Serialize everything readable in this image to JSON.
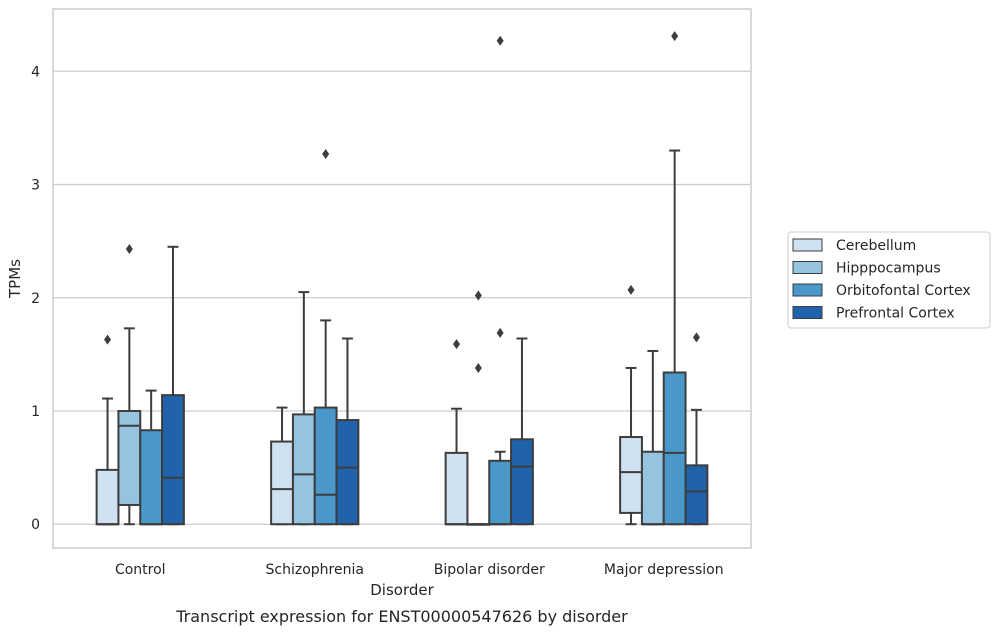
{
  "chart_data": {
    "type": "box",
    "title": "",
    "caption": "Transcript expression for ENST00000547626 by disorder",
    "xlabel": "Disorder",
    "ylabel": "TPMs",
    "ylim": [
      -0.21,
      4.55
    ],
    "yticks": [
      0,
      1,
      2,
      3,
      4
    ],
    "grid": true,
    "legend_position": "right",
    "categories": [
      "Control",
      "Schizophrenia",
      "Bipolar disorder",
      "Major depression"
    ],
    "series": [
      {
        "name": "Cerebellum",
        "color": "#d0e1f2",
        "boxes": [
          {
            "whisker_low": 0,
            "q1": 0,
            "median": 0,
            "q3": 0.48,
            "whisker_high": 1.11,
            "outliers": [
              1.63
            ]
          },
          {
            "whisker_low": 0,
            "q1": 0,
            "median": 0.31,
            "q3": 0.73,
            "whisker_high": 1.03,
            "outliers": []
          },
          {
            "whisker_low": 0,
            "q1": 0,
            "median": 0,
            "q3": 0.63,
            "whisker_high": 1.02,
            "outliers": [
              1.59
            ]
          },
          {
            "whisker_low": 0,
            "q1": 0.1,
            "median": 0.46,
            "q3": 0.77,
            "whisker_high": 1.38,
            "outliers": [
              2.07
            ]
          }
        ]
      },
      {
        "name": "Hipppocampus",
        "color": "#94c4df",
        "boxes": [
          {
            "whisker_low": 0,
            "q1": 0.17,
            "median": 0.87,
            "q3": 1.0,
            "whisker_high": 1.73,
            "outliers": [
              2.43
            ]
          },
          {
            "whisker_low": 0,
            "q1": 0,
            "median": 0.44,
            "q3": 0.97,
            "whisker_high": 2.05,
            "outliers": []
          },
          {
            "whisker_low": 0,
            "q1": 0,
            "median": 0,
            "q3": 0,
            "whisker_high": 0,
            "outliers": [
              1.38,
              2.02
            ]
          },
          {
            "whisker_low": 0,
            "q1": 0,
            "median": 0,
            "q3": 0.64,
            "whisker_high": 1.53,
            "outliers": []
          }
        ]
      },
      {
        "name": "Orbitofontal Cortex",
        "color": "#4a98c9",
        "boxes": [
          {
            "whisker_low": 0,
            "q1": 0,
            "median": 0,
            "q3": 0.83,
            "whisker_high": 1.18,
            "outliers": []
          },
          {
            "whisker_low": 0,
            "q1": 0,
            "median": 0.26,
            "q3": 1.03,
            "whisker_high": 1.8,
            "outliers": [
              3.27
            ]
          },
          {
            "whisker_low": 0,
            "q1": 0,
            "median": 0,
            "q3": 0.56,
            "whisker_high": 0.64,
            "outliers": [
              1.69,
              4.27
            ]
          },
          {
            "whisker_low": 0,
            "q1": 0,
            "median": 0.63,
            "q3": 1.34,
            "whisker_high": 3.3,
            "outliers": [
              4.31
            ]
          }
        ]
      },
      {
        "name": "Prefrontal Cortex",
        "color": "#2163aa",
        "boxes": [
          {
            "whisker_low": 0,
            "q1": 0,
            "median": 0.41,
            "q3": 1.14,
            "whisker_high": 2.45,
            "outliers": []
          },
          {
            "whisker_low": 0,
            "q1": 0,
            "median": 0.5,
            "q3": 0.92,
            "whisker_high": 1.64,
            "outliers": []
          },
          {
            "whisker_low": 0,
            "q1": 0,
            "median": 0.51,
            "q3": 0.75,
            "whisker_high": 1.64,
            "outliers": []
          },
          {
            "whisker_low": 0,
            "q1": 0,
            "median": 0.29,
            "q3": 0.52,
            "whisker_high": 1.01,
            "outliers": [
              1.65
            ]
          }
        ]
      }
    ]
  }
}
